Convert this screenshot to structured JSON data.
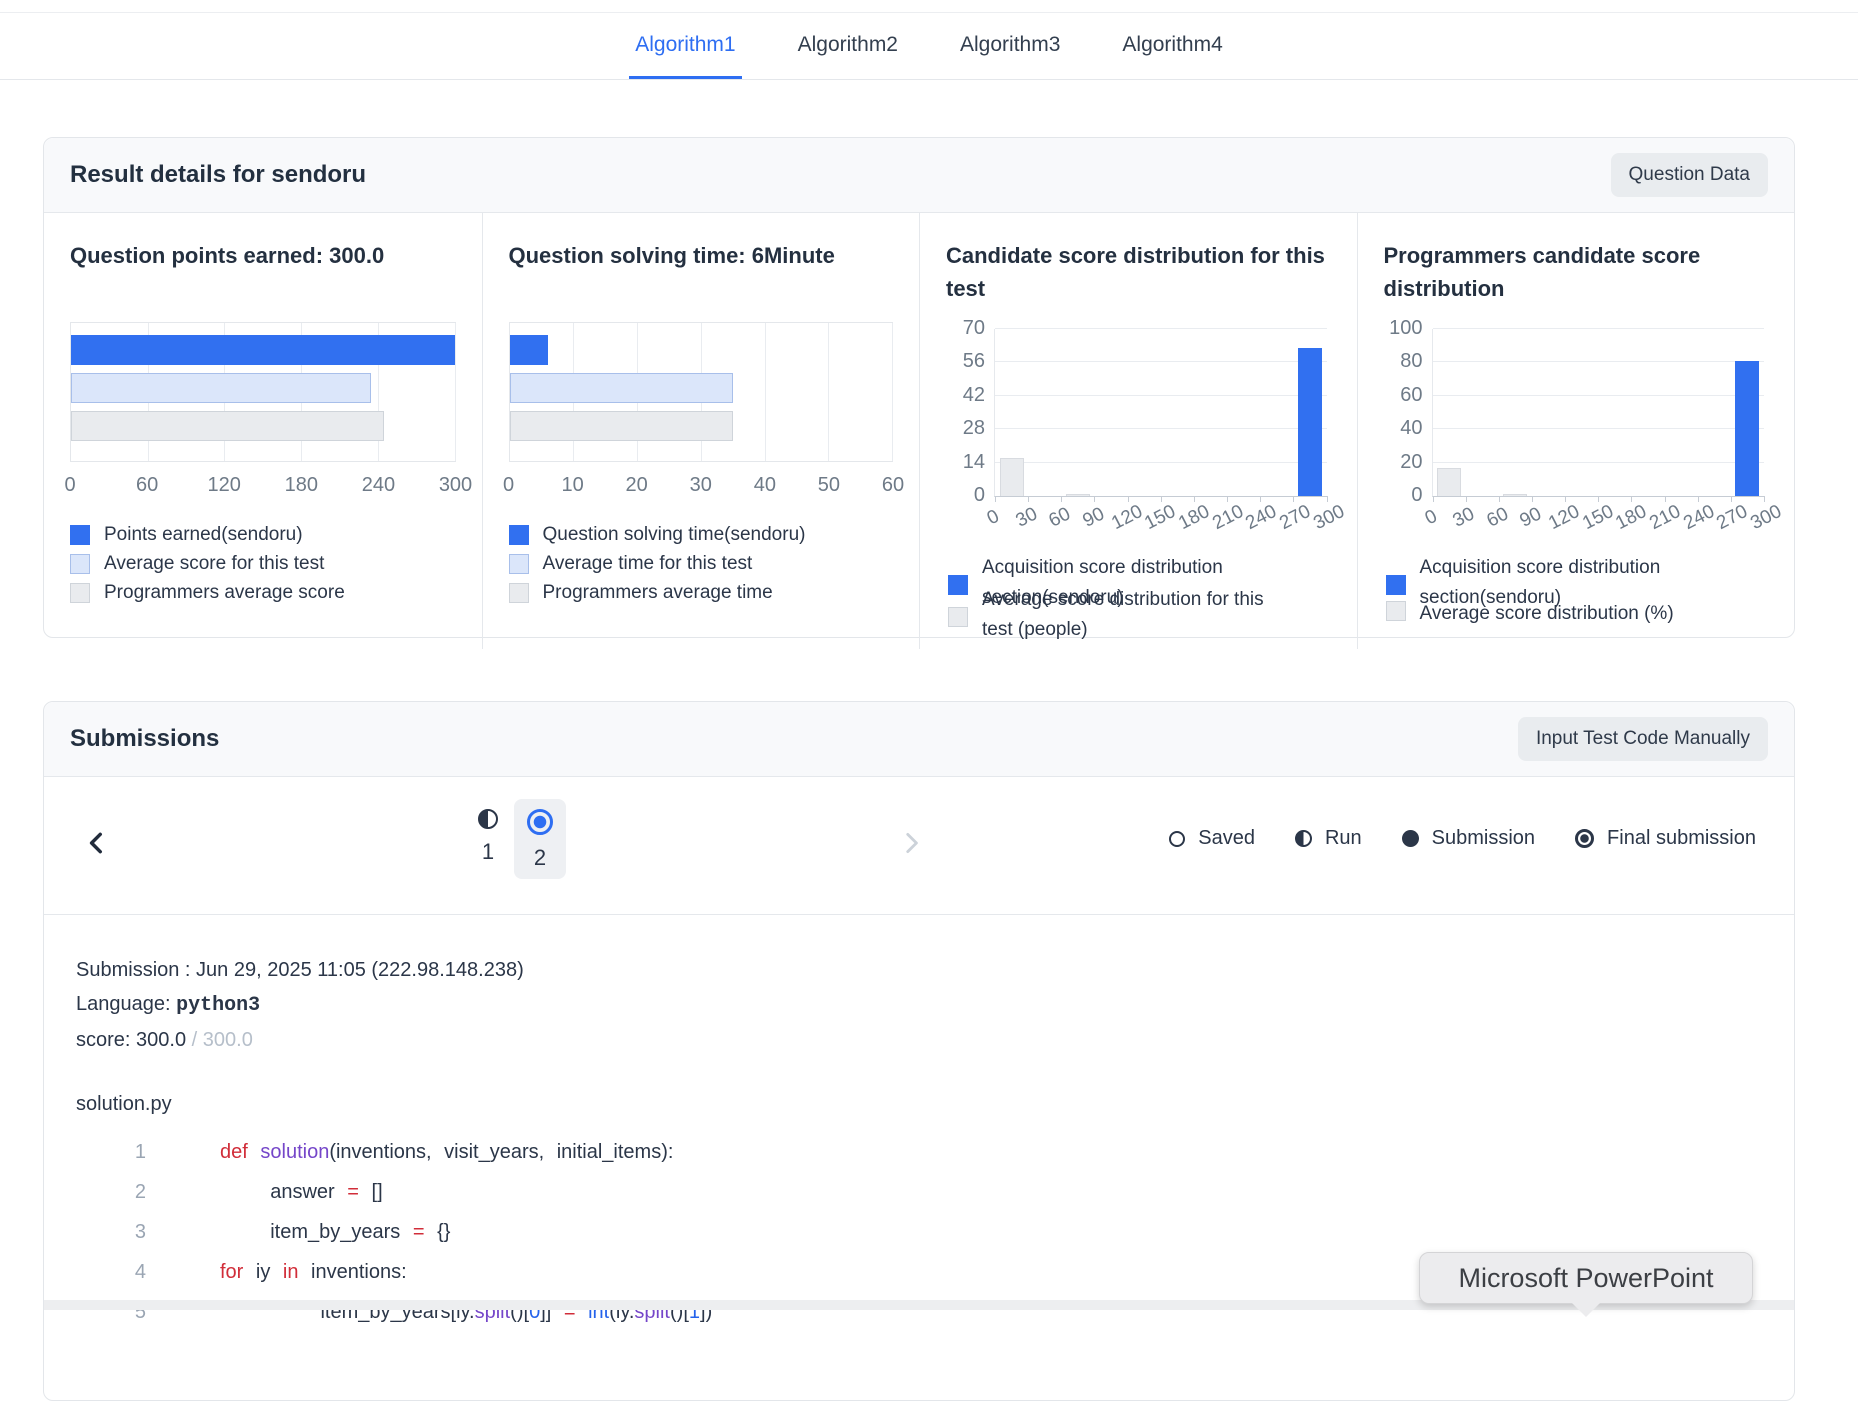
{
  "tabs": {
    "items": [
      {
        "label": "Algorithm1",
        "active": true
      },
      {
        "label": "Algorithm2",
        "active": false
      },
      {
        "label": "Algorithm3",
        "active": false
      },
      {
        "label": "Algorithm4",
        "active": false
      }
    ]
  },
  "result_details": {
    "title": "Result details for sendoru",
    "button_label": "Question Data"
  },
  "chart_data": [
    {
      "type": "bar",
      "orientation": "horizontal",
      "title": "Question points earned: 300.0",
      "xlim": [
        0,
        300
      ],
      "xticks": [
        0,
        60,
        120,
        180,
        240,
        300
      ],
      "series": [
        {
          "name": "Points earned(sendoru)",
          "value": 300,
          "swatch": "blue"
        },
        {
          "name": "Average score for this test",
          "value": 235,
          "swatch": "lblue"
        },
        {
          "name": "Programmers average score",
          "value": 245,
          "swatch": "gray"
        }
      ]
    },
    {
      "type": "bar",
      "orientation": "horizontal",
      "title": "Question solving time: 6Minute",
      "xlim": [
        0,
        60
      ],
      "xticks": [
        0,
        10,
        20,
        30,
        40,
        50,
        60
      ],
      "series": [
        {
          "name": "Question solving time(sendoru)",
          "value": 6,
          "swatch": "blue"
        },
        {
          "name": "Average time for this test",
          "value": 35,
          "swatch": "lblue"
        },
        {
          "name": "Programmers average time",
          "value": 35,
          "swatch": "gray"
        }
      ]
    },
    {
      "type": "bar",
      "orientation": "vertical",
      "title": "Candidate score distribution for this test",
      "ylim": [
        0,
        70
      ],
      "yticks": [
        0,
        14,
        28,
        42,
        56,
        70
      ],
      "xticks": [
        0,
        30,
        60,
        90,
        120,
        150,
        180,
        210,
        240,
        270,
        300
      ],
      "bin_size": 30,
      "bins": [
        {
          "x0": 0,
          "value": 16,
          "style": "gray"
        },
        {
          "x0": 60,
          "value": 0.8,
          "style": "gray"
        },
        {
          "x0": 270,
          "value": 62,
          "style": "blue"
        }
      ],
      "legend": [
        {
          "style": "blue",
          "label": "Acquisition score distribution section(sendoru)"
        },
        {
          "style": "gray",
          "label": "Average score distribution for this test (people)"
        }
      ],
      "legend_tops": [
        0,
        32
      ],
      "legend_square_offsets": [
        22,
        22
      ]
    },
    {
      "type": "bar",
      "orientation": "vertical",
      "title": "Programmers candidate score distribution",
      "ylim": [
        0,
        100
      ],
      "yticks": [
        0,
        20,
        40,
        60,
        80,
        100
      ],
      "xticks": [
        0,
        30,
        60,
        90,
        120,
        150,
        180,
        210,
        240,
        270,
        300
      ],
      "bin_size": 30,
      "bins": [
        {
          "x0": 0,
          "value": 17,
          "style": "gray"
        },
        {
          "x0": 60,
          "value": 1,
          "style": "gray"
        },
        {
          "x0": 270,
          "value": 81,
          "style": "blue"
        }
      ],
      "legend": [
        {
          "style": "blue",
          "label": "Acquisition score distribution section(sendoru)"
        },
        {
          "style": "gray",
          "label": "Average score distribution (%)"
        }
      ],
      "legend_tops": [
        0,
        46
      ],
      "legend_square_offsets": [
        22,
        2
      ]
    }
  ],
  "submissions": {
    "title": "Submissions",
    "button_label": "Input Test Code Manually",
    "pagination": {
      "pages": [
        {
          "number": "1",
          "icon": "run",
          "selected": false
        },
        {
          "number": "2",
          "icon": "final",
          "selected": true
        }
      ]
    },
    "status_legend": [
      {
        "icon": "saved",
        "label": "Saved"
      },
      {
        "icon": "run",
        "label": "Run"
      },
      {
        "icon": "submission",
        "label": "Submission"
      },
      {
        "icon": "final",
        "label": "Final submission"
      }
    ],
    "detail": {
      "submission_line": "Submission : Jun 29, 2025 11:05 (222.98.148.238)",
      "language_label": "Language: ",
      "language_value": "python3",
      "score_label": "score: ",
      "score_value": "300.0",
      "score_total": " / 300.0",
      "file_name": "solution.py"
    },
    "code": {
      "lines": [
        [
          {
            "t": "k",
            "s": "def"
          },
          {
            "t": "p",
            "s": " "
          },
          {
            "t": "f",
            "s": "solution"
          },
          {
            "t": "p",
            "s": "(inventions, visit_years, initial_items):"
          }
        ],
        [
          {
            "t": "p",
            "s": "    answer "
          },
          {
            "t": "k",
            "s": "="
          },
          {
            "t": "p",
            "s": " []"
          }
        ],
        [
          {
            "t": "p",
            "s": "    item_by_years "
          },
          {
            "t": "k",
            "s": "="
          },
          {
            "t": "p",
            "s": " {}"
          }
        ],
        [
          {
            "t": "k",
            "s": "for"
          },
          {
            "t": "p",
            "s": " iy "
          },
          {
            "t": "k",
            "s": "in"
          },
          {
            "t": "p",
            "s": " inventions:"
          }
        ],
        [
          {
            "t": "p",
            "s": "        item_by_years[iy."
          },
          {
            "t": "f",
            "s": "split"
          },
          {
            "t": "p",
            "s": "()["
          },
          {
            "t": "b",
            "s": "0"
          },
          {
            "t": "p",
            "s": "]] "
          },
          {
            "t": "k",
            "s": "="
          },
          {
            "t": "p",
            "s": " "
          },
          {
            "t": "b",
            "s": "int"
          },
          {
            "t": "p",
            "s": "(iy."
          },
          {
            "t": "f",
            "s": "split"
          },
          {
            "t": "p",
            "s": "()["
          },
          {
            "t": "b",
            "s": "1"
          },
          {
            "t": "p",
            "s": "])"
          }
        ]
      ]
    }
  },
  "tooltip": "Microsoft PowerPoint",
  "colors": {
    "accent": "#2e6ef2",
    "bar_blue": "#3170f0",
    "bar_light_blue": "#dbe6fa",
    "bar_gray": "#e9ebee"
  }
}
